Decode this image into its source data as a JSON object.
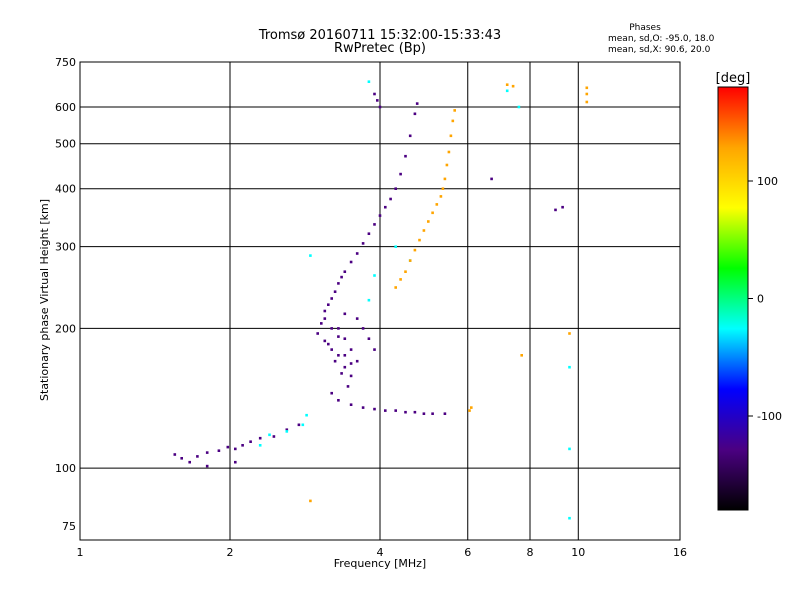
{
  "chart_data": {
    "type": "scatter",
    "title": "Tromsø 20160711 15:32:00-15:33:43",
    "subtitle": "RwPretec (Bp)",
    "xlabel": "Frequency [MHz]",
    "ylabel": "Stationary phase Virtual Height [km]",
    "x_scale": "log",
    "y_scale": "log",
    "xlim": [
      1,
      16
    ],
    "ylim": [
      70,
      750
    ],
    "x_ticks": [
      1,
      2,
      4,
      6,
      8,
      10,
      16
    ],
    "y_ticks": [
      75,
      100,
      200,
      300,
      400,
      500,
      600,
      750
    ],
    "grid": true,
    "info": {
      "heading": "Phases",
      "line_o": "mean, sd,O: -95.0, 18.0",
      "line_x": "mean, sd,X: 90.6, 20.0"
    },
    "colorbar": {
      "label": "[deg]",
      "range": [
        -180,
        180
      ],
      "ticks": [
        100,
        0,
        -100
      ],
      "colors": [
        "#ff0000",
        "#ffa500",
        "#ffff00",
        "#00ff00",
        "#00ffff",
        "#0000ff",
        "#4b0082",
        "#000000"
      ]
    },
    "series": [
      {
        "phase_deg": -120,
        "points": [
          [
            1.55,
            107
          ],
          [
            1.6,
            105
          ],
          [
            1.66,
            103
          ],
          [
            1.72,
            106
          ],
          [
            1.8,
            108
          ],
          [
            1.9,
            109
          ],
          [
            1.98,
            111
          ],
          [
            2.05,
            110
          ],
          [
            2.12,
            112
          ],
          [
            2.2,
            114
          ],
          [
            2.3,
            116
          ],
          [
            2.45,
            117
          ],
          [
            2.6,
            121
          ],
          [
            2.75,
            124
          ],
          [
            3.05,
            205
          ],
          [
            3.1,
            218
          ],
          [
            3.15,
            225
          ],
          [
            3.2,
            232
          ],
          [
            3.25,
            240
          ],
          [
            3.3,
            250
          ],
          [
            3.35,
            258
          ],
          [
            3.4,
            265
          ],
          [
            3.5,
            278
          ],
          [
            3.6,
            290
          ],
          [
            3.7,
            305
          ],
          [
            3.8,
            320
          ],
          [
            3.9,
            335
          ],
          [
            4.0,
            350
          ],
          [
            4.1,
            365
          ],
          [
            4.2,
            380
          ],
          [
            4.3,
            400
          ],
          [
            4.4,
            430
          ],
          [
            4.5,
            470
          ],
          [
            4.6,
            520
          ],
          [
            4.7,
            580
          ],
          [
            4.75,
            610
          ],
          [
            3.2,
            145
          ],
          [
            3.3,
            140
          ],
          [
            3.5,
            137
          ],
          [
            3.7,
            135
          ],
          [
            3.9,
            134
          ],
          [
            4.1,
            133
          ],
          [
            4.3,
            133
          ],
          [
            4.5,
            132
          ],
          [
            4.7,
            132
          ],
          [
            4.9,
            131
          ],
          [
            5.1,
            131
          ],
          [
            5.4,
            131
          ],
          [
            3.3,
            200
          ],
          [
            3.4,
            190
          ],
          [
            3.5,
            180
          ],
          [
            3.25,
            170
          ],
          [
            3.35,
            160
          ],
          [
            3.45,
            150
          ],
          [
            3.6,
            210
          ],
          [
            3.7,
            200
          ],
          [
            3.8,
            190
          ],
          [
            3.9,
            180
          ],
          [
            3.15,
            185
          ],
          [
            3.4,
            215
          ],
          [
            3.9,
            640
          ],
          [
            3.95,
            620
          ],
          [
            4.0,
            600
          ],
          [
            6.7,
            420
          ],
          [
            9.0,
            360
          ],
          [
            9.3,
            365
          ],
          [
            1.8,
            101
          ],
          [
            2.05,
            103
          ]
        ]
      },
      {
        "phase_deg": -150,
        "points": [
          [
            3.0,
            195
          ],
          [
            3.1,
            188
          ],
          [
            3.2,
            180
          ],
          [
            3.3,
            175
          ],
          [
            3.4,
            165
          ],
          [
            3.5,
            158
          ],
          [
            3.6,
            170
          ],
          [
            3.1,
            210
          ],
          [
            3.2,
            200
          ],
          [
            3.3,
            192
          ],
          [
            3.4,
            175
          ],
          [
            3.5,
            168
          ]
        ]
      },
      {
        "phase_deg": -40,
        "points": [
          [
            2.4,
            118
          ],
          [
            2.6,
            120
          ],
          [
            2.8,
            124
          ],
          [
            2.9,
            287
          ],
          [
            3.8,
            230
          ],
          [
            3.9,
            260
          ],
          [
            4.3,
            300
          ],
          [
            4.6,
            280
          ],
          [
            3.8,
            680
          ],
          [
            7.2,
            650
          ],
          [
            7.6,
            600
          ],
          [
            9.6,
            165
          ],
          [
            9.6,
            110
          ],
          [
            9.6,
            78
          ],
          [
            2.3,
            112
          ],
          [
            2.85,
            130
          ]
        ]
      },
      {
        "phase_deg": 110,
        "points": [
          [
            4.3,
            245
          ],
          [
            4.4,
            255
          ],
          [
            4.5,
            265
          ],
          [
            4.6,
            280
          ],
          [
            4.7,
            295
          ],
          [
            4.8,
            310
          ],
          [
            4.9,
            325
          ],
          [
            5.0,
            340
          ],
          [
            5.1,
            355
          ],
          [
            5.2,
            370
          ],
          [
            5.3,
            385
          ],
          [
            5.35,
            400
          ],
          [
            5.4,
            420
          ],
          [
            5.45,
            450
          ],
          [
            5.5,
            480
          ],
          [
            5.55,
            520
          ],
          [
            5.6,
            560
          ],
          [
            5.65,
            590
          ],
          [
            6.05,
            133
          ],
          [
            6.1,
            135
          ],
          [
            7.2,
            670
          ],
          [
            7.4,
            665
          ],
          [
            10.4,
            640
          ],
          [
            10.4,
            660
          ],
          [
            2.9,
            85
          ]
        ]
      },
      {
        "phase_deg": 150,
        "points": [
          [
            9.6,
            195
          ],
          [
            7.7,
            175
          ],
          [
            10.4,
            615
          ]
        ]
      }
    ]
  }
}
